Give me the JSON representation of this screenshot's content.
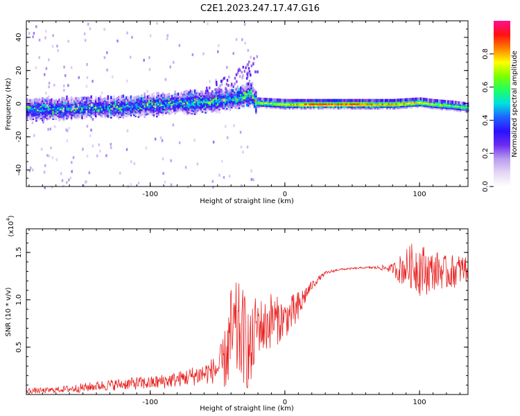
{
  "figure": {
    "title": "C2E1.2023.247.17.47.G16"
  },
  "colors": {
    "snr_line": "#e82020",
    "frame": "#000000",
    "colormap": [
      "#ffffff",
      "#e6d6f6",
      "#b89cf0",
      "#6d2cf0",
      "#2a10ff",
      "#2060ff",
      "#00e0e0",
      "#20ff60",
      "#80ff00",
      "#ffff00",
      "#ff8000",
      "#ff1010",
      "#ff1090"
    ]
  },
  "chart_data": [
    {
      "type": "heatmap",
      "title": "",
      "xlabel": "Height of straight line (km)",
      "ylabel": "Frequency (Hz)",
      "xlim": [
        -192,
        136
      ],
      "ylim": [
        -50,
        50
      ],
      "xticks": [
        -100,
        0,
        100
      ],
      "yticks": [
        -40,
        -20,
        0,
        20,
        40
      ],
      "colorbar": {
        "label": "Normalized spectral amplitude",
        "range": [
          0,
          1
        ],
        "ticks": [
          "0.0",
          "0.2",
          "0.4",
          "0.6",
          "0.8"
        ],
        "tick_values": [
          0.0,
          0.2,
          0.4,
          0.6,
          0.8
        ]
      },
      "ridge": {
        "description_points_x": [
          -190,
          -170,
          -150,
          -130,
          -110,
          -90,
          -70,
          -50,
          -35,
          -25,
          -22,
          0,
          20,
          50,
          80,
          100,
          110,
          125,
          135
        ],
        "center_freq": [
          -3,
          -3,
          -2,
          -2,
          -1,
          0,
          1,
          2,
          4,
          6,
          1,
          0,
          0,
          0,
          0,
          1,
          0,
          -1,
          -2
        ],
        "amplitude": [
          0.45,
          0.45,
          0.45,
          0.42,
          0.45,
          0.45,
          0.5,
          0.5,
          0.5,
          0.55,
          0.7,
          0.8,
          0.95,
          0.95,
          0.85,
          0.8,
          0.75,
          0.7,
          0.65
        ]
      }
    },
    {
      "type": "line",
      "title": "",
      "xlabel": "Height of straight line (km)",
      "ylabel": "SNR (10 * v/v)",
      "y_multiplier": "(x10",
      "y_multiplier_exp": "4",
      "xlim": [
        -192,
        136
      ],
      "ylim": [
        0,
        1.75
      ],
      "xticks": [
        -100,
        0,
        100
      ],
      "yticks": [
        0.5,
        1.0,
        1.5
      ],
      "ytick_labels": [
        "0.5",
        "1.0",
        "1.5"
      ],
      "series": [
        {
          "name": "",
          "x": [
            -192,
            -180,
            -170,
            -160,
            -150,
            -140,
            -130,
            -120,
            -110,
            -100,
            -90,
            -80,
            -70,
            -60,
            -50,
            -45,
            -40,
            -35,
            -30,
            -25,
            -22,
            -20,
            -15,
            -10,
            -5,
            0,
            5,
            10,
            15,
            20,
            25,
            30,
            40,
            50,
            60,
            70,
            80,
            85,
            90,
            95,
            100,
            105,
            110,
            115,
            120,
            125,
            130,
            136
          ],
          "y": [
            0.04,
            0.04,
            0.05,
            0.06,
            0.07,
            0.09,
            0.1,
            0.11,
            0.12,
            0.12,
            0.14,
            0.16,
            0.19,
            0.22,
            0.27,
            0.35,
            0.6,
            0.65,
            0.6,
            0.4,
            0.7,
            0.75,
            0.7,
            0.8,
            0.78,
            0.8,
            0.85,
            0.9,
            1.05,
            1.15,
            1.22,
            1.28,
            1.32,
            1.33,
            1.34,
            1.34,
            1.33,
            1.32,
            1.34,
            1.36,
            1.34,
            1.3,
            1.3,
            1.32,
            1.28,
            1.3,
            1.32,
            1.33
          ],
          "noise_amplitude": [
            0.03,
            0.03,
            0.03,
            0.04,
            0.05,
            0.05,
            0.06,
            0.06,
            0.07,
            0.07,
            0.08,
            0.08,
            0.1,
            0.12,
            0.15,
            0.3,
            0.55,
            0.55,
            0.5,
            0.45,
            0.35,
            0.3,
            0.3,
            0.3,
            0.25,
            0.2,
            0.2,
            0.2,
            0.1,
            0.05,
            0.03,
            0.02,
            0.01,
            0.01,
            0.01,
            0.02,
            0.05,
            0.15,
            0.2,
            0.25,
            0.3,
            0.25,
            0.2,
            0.2,
            0.18,
            0.18,
            0.16,
            0.15
          ]
        }
      ]
    }
  ]
}
